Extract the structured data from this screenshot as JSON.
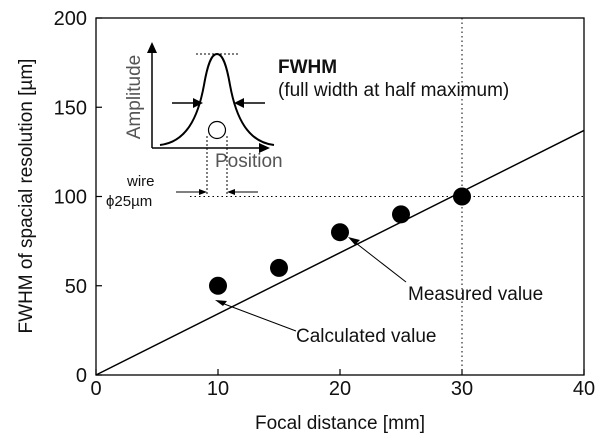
{
  "chart_data": {
    "type": "scatter",
    "xlabel": "Focal distance [mm]",
    "ylabel": "FWHM of spacial resolution [µm]",
    "xlim": [
      0,
      40
    ],
    "ylim": [
      0,
      200
    ],
    "x_ticks": [
      "0",
      "10",
      "20",
      "30",
      "40"
    ],
    "y_ticks": [
      "0",
      "50",
      "100",
      "150",
      "200"
    ],
    "grid": false,
    "series": [
      {
        "kind": "points",
        "x": [
          10,
          15,
          20,
          25,
          30
        ],
        "y": [
          50,
          60,
          80,
          90,
          100
        ]
      },
      {
        "kind": "line",
        "x": [
          0,
          40
        ],
        "y": [
          0,
          137
        ]
      }
    ],
    "reference_lines": {
      "x": 30,
      "y": 100,
      "style": "dotted"
    },
    "annotations": {
      "measured": "Measured value",
      "calculated": "Calculated value",
      "fwhm_title": "FWHM",
      "fwhm_sub": "(full width at half maximum)",
      "inset_ylabel": "Amplitude",
      "inset_xlabel": "Position",
      "wire_label": "wire",
      "wire_size": "ϕ25µm"
    },
    "colors": {
      "marker": "#000000",
      "line": "#000000",
      "inset_label": "#555555"
    }
  }
}
